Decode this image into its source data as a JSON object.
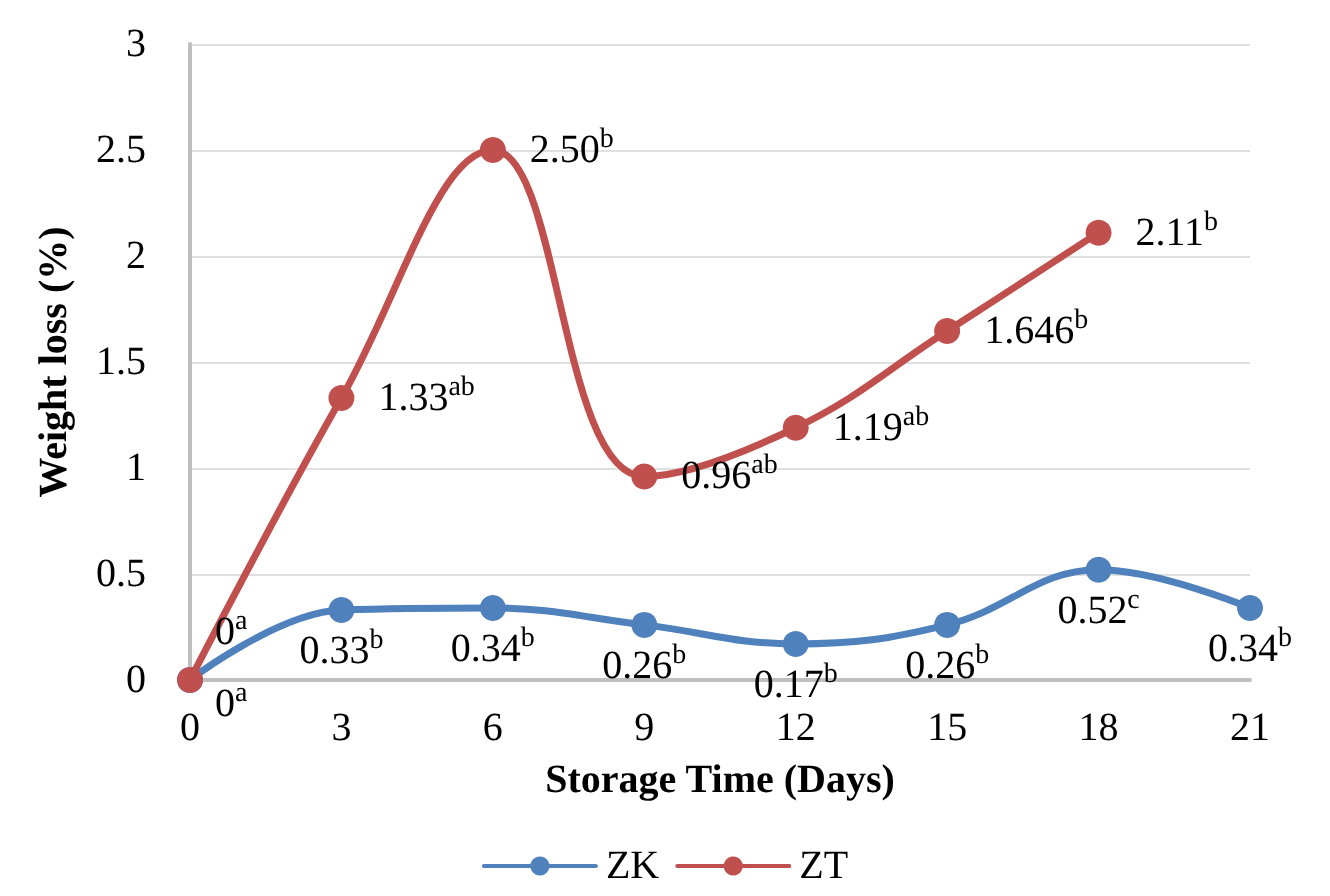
{
  "chart_data": {
    "type": "line",
    "xlabel": "Storage Time (Days)",
    "ylabel": "Weight loss (%)",
    "x": [
      0,
      3,
      6,
      9,
      12,
      15,
      18,
      21
    ],
    "xlim": [
      0,
      21
    ],
    "xticks": [
      0,
      3,
      6,
      9,
      12,
      15,
      18,
      21
    ],
    "ylim": [
      0,
      3
    ],
    "yticks": [
      0,
      0.5,
      1,
      1.5,
      2,
      2.5,
      3
    ],
    "grid": "y",
    "legend": "bottom",
    "marker": "circle",
    "line_style": "solid",
    "series": [
      {
        "name": "ZK",
        "color": "#4f81bd",
        "values": [
          0,
          0.33,
          0.34,
          0.26,
          0.17,
          0.26,
          0.52,
          0.34
        ],
        "value_labels": [
          "0$^{a}$",
          "0.33$^{b}$",
          "0.34$^{b}$",
          "0.26$^{b}$",
          "0.17$^{b}$",
          "0.26$^{b}$",
          "0.52$^{c}$",
          "0.34$^{b}$"
        ]
      },
      {
        "name": "ZT",
        "color": "#c0504d",
        "values": [
          0,
          1.33,
          2.5,
          0.96,
          1.19,
          1.646,
          2.11,
          null
        ],
        "value_labels": [
          "0$^{a}$",
          "1.33$^{ab}$",
          "2.50$^{b}$",
          "0.96$^{ab}$",
          "1.19$^{ab}$",
          "1.646$^{b}$",
          "2.11$^{b}$",
          null
        ]
      }
    ]
  }
}
